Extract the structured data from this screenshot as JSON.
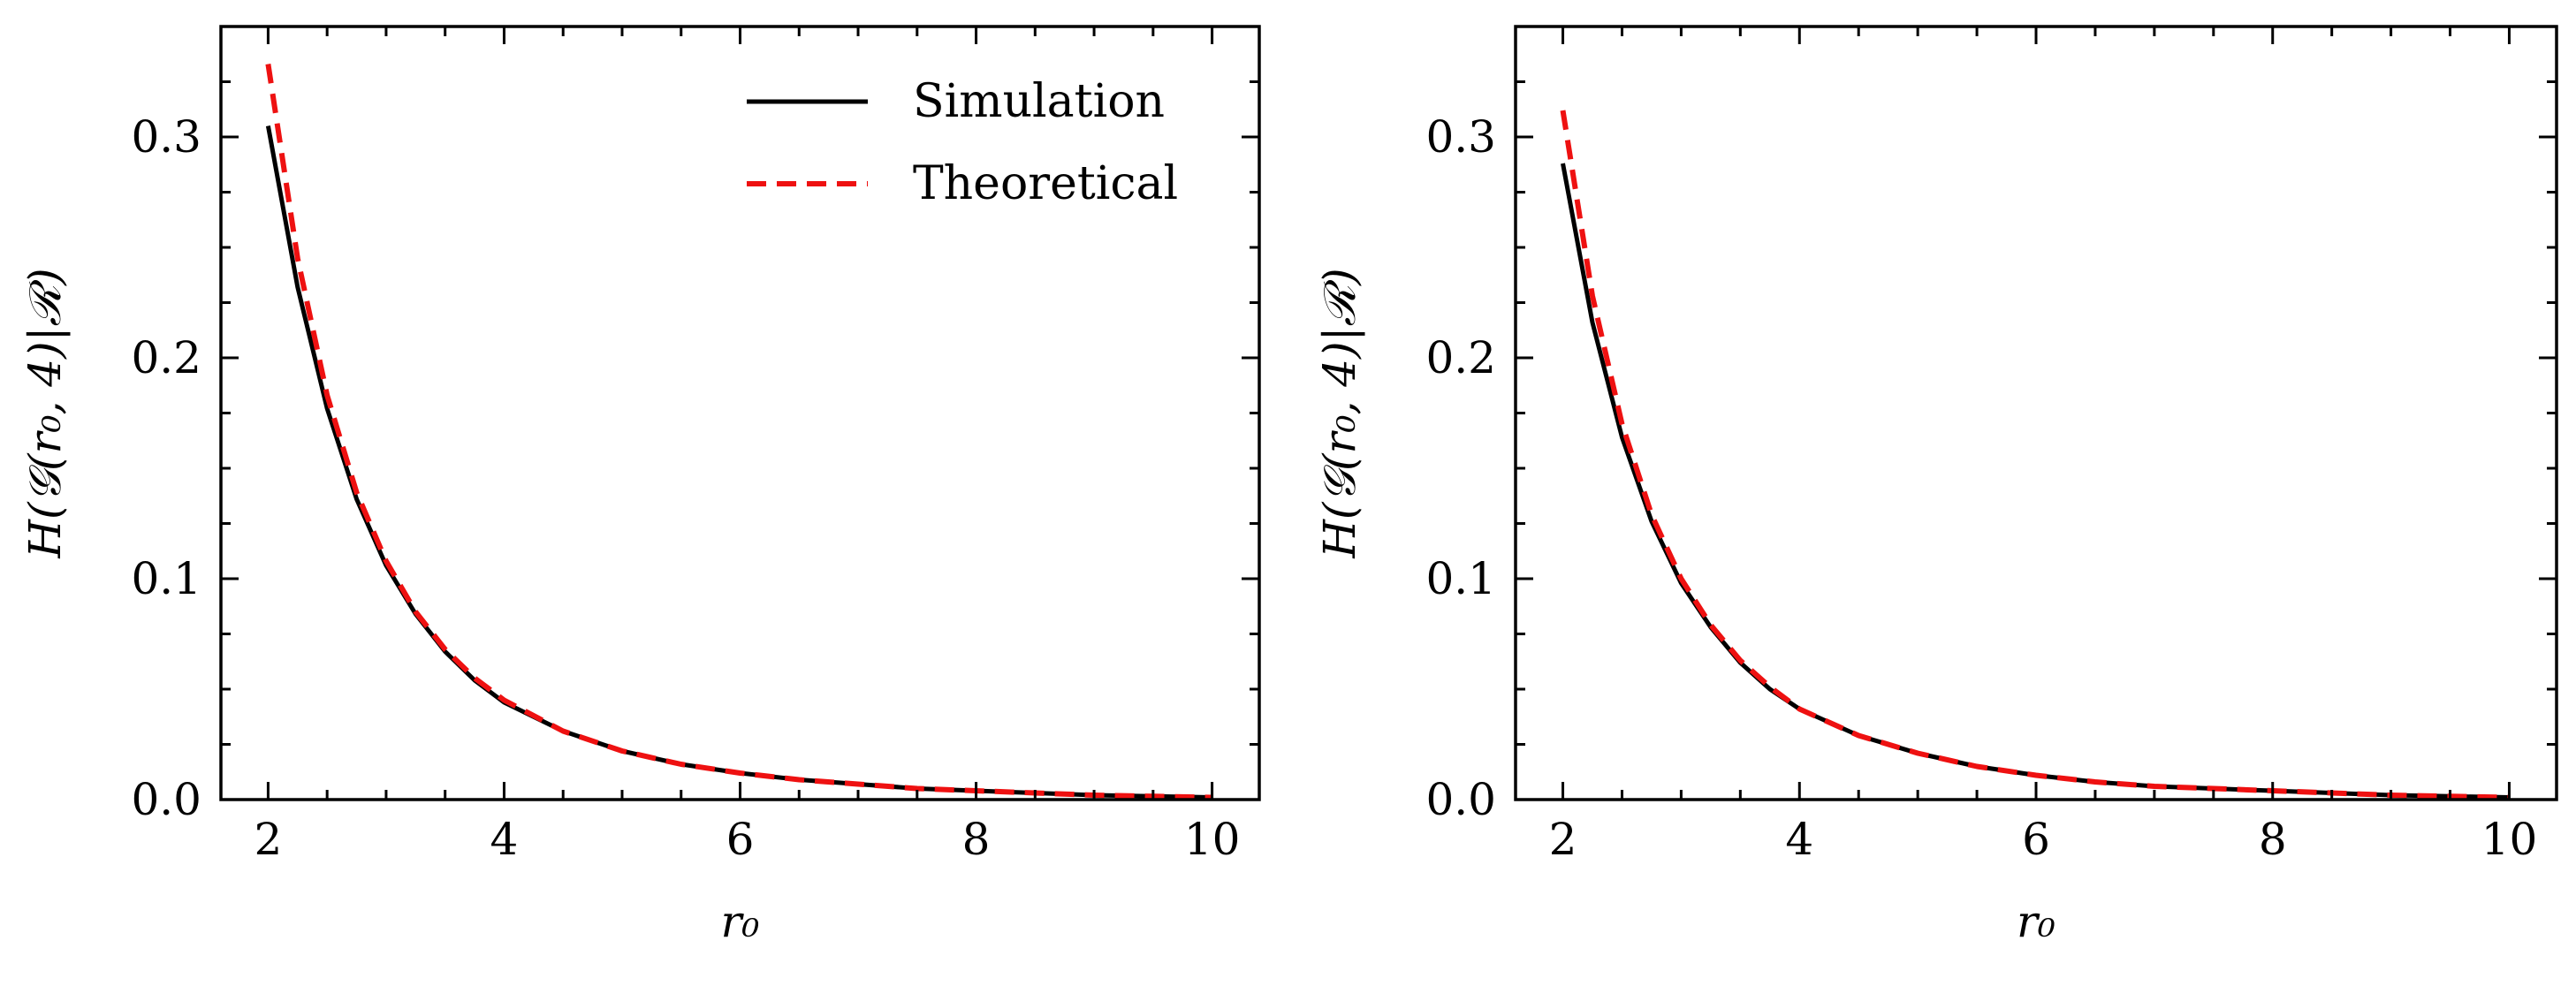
{
  "chart_data": [
    {
      "type": "line",
      "xlabel": "r₀",
      "ylabel": "H(𝒢(r₀, 4)|ℛ)",
      "xlim": [
        1.6,
        10.4
      ],
      "ylim": [
        0.0,
        0.35
      ],
      "xticks": [
        2,
        4,
        6,
        8,
        10
      ],
      "xtick_labels": [
        "2",
        "4",
        "6",
        "8",
        "10"
      ],
      "yticks": [
        0.0,
        0.1,
        0.2,
        0.3
      ],
      "ytick_labels": [
        "0.0",
        "0.1",
        "0.2",
        "0.3"
      ],
      "x_minor_step": 0.5,
      "y_minor_step": 0.025,
      "grid": false,
      "legend": "top-right",
      "series": [
        {
          "name": "Simulation",
          "color": "#000000",
          "style": "solid",
          "x": [
            2.0,
            2.25,
            2.5,
            2.75,
            3.0,
            3.25,
            3.5,
            3.75,
            4.0,
            4.5,
            5.0,
            5.5,
            6.0,
            6.5,
            7.0,
            7.5,
            8.0,
            8.5,
            9.0,
            9.5,
            10.0
          ],
          "y": [
            0.305,
            0.232,
            0.177,
            0.136,
            0.106,
            0.084,
            0.067,
            0.054,
            0.044,
            0.031,
            0.022,
            0.016,
            0.012,
            0.009,
            0.007,
            0.005,
            0.004,
            0.003,
            0.002,
            0.0015,
            0.001
          ]
        },
        {
          "name": "Theoretical",
          "color": "#ee1111",
          "style": "dashed",
          "x": [
            2.0,
            2.25,
            2.5,
            2.75,
            3.0,
            3.25,
            3.5,
            3.75,
            4.0,
            4.5,
            5.0,
            5.5,
            6.0,
            6.5,
            7.0,
            7.5,
            8.0,
            8.5,
            9.0,
            9.5,
            10.0
          ],
          "y": [
            0.333,
            0.245,
            0.183,
            0.139,
            0.108,
            0.085,
            0.068,
            0.055,
            0.045,
            0.031,
            0.022,
            0.016,
            0.012,
            0.009,
            0.007,
            0.005,
            0.004,
            0.003,
            0.002,
            0.0015,
            0.001
          ]
        }
      ]
    },
    {
      "type": "line",
      "xlabel": "r₀",
      "ylabel": "H(𝒢(r₀, 4)|ℛ)",
      "xlim": [
        1.6,
        10.4
      ],
      "ylim": [
        0.0,
        0.35
      ],
      "xticks": [
        2,
        4,
        6,
        8,
        10
      ],
      "xtick_labels": [
        "2",
        "4",
        "6",
        "8",
        "10"
      ],
      "yticks": [
        0.0,
        0.1,
        0.2,
        0.3
      ],
      "ytick_labels": [
        "0.0",
        "0.1",
        "0.2",
        "0.3"
      ],
      "x_minor_step": 0.5,
      "y_minor_step": 0.025,
      "grid": false,
      "legend": "none",
      "series": [
        {
          "color": "#000000",
          "style": "solid",
          "x": [
            2.0,
            2.25,
            2.5,
            2.75,
            3.0,
            3.25,
            3.5,
            3.75,
            4.0,
            4.5,
            5.0,
            5.5,
            6.0,
            6.5,
            7.0,
            7.5,
            8.0,
            8.5,
            9.0,
            9.5,
            10.0
          ],
          "y": [
            0.288,
            0.216,
            0.164,
            0.126,
            0.098,
            0.078,
            0.062,
            0.05,
            0.041,
            0.029,
            0.021,
            0.015,
            0.011,
            0.008,
            0.006,
            0.005,
            0.004,
            0.003,
            0.002,
            0.0015,
            0.001
          ]
        },
        {
          "color": "#ee1111",
          "style": "dashed",
          "x": [
            2.0,
            2.25,
            2.5,
            2.75,
            3.0,
            3.25,
            3.5,
            3.75,
            4.0,
            4.5,
            5.0,
            5.5,
            6.0,
            6.5,
            7.0,
            7.5,
            8.0,
            8.5,
            9.0,
            9.5,
            10.0
          ],
          "y": [
            0.312,
            0.228,
            0.17,
            0.129,
            0.1,
            0.079,
            0.063,
            0.051,
            0.041,
            0.029,
            0.021,
            0.015,
            0.011,
            0.008,
            0.006,
            0.005,
            0.004,
            0.003,
            0.002,
            0.0015,
            0.001
          ]
        }
      ]
    }
  ]
}
